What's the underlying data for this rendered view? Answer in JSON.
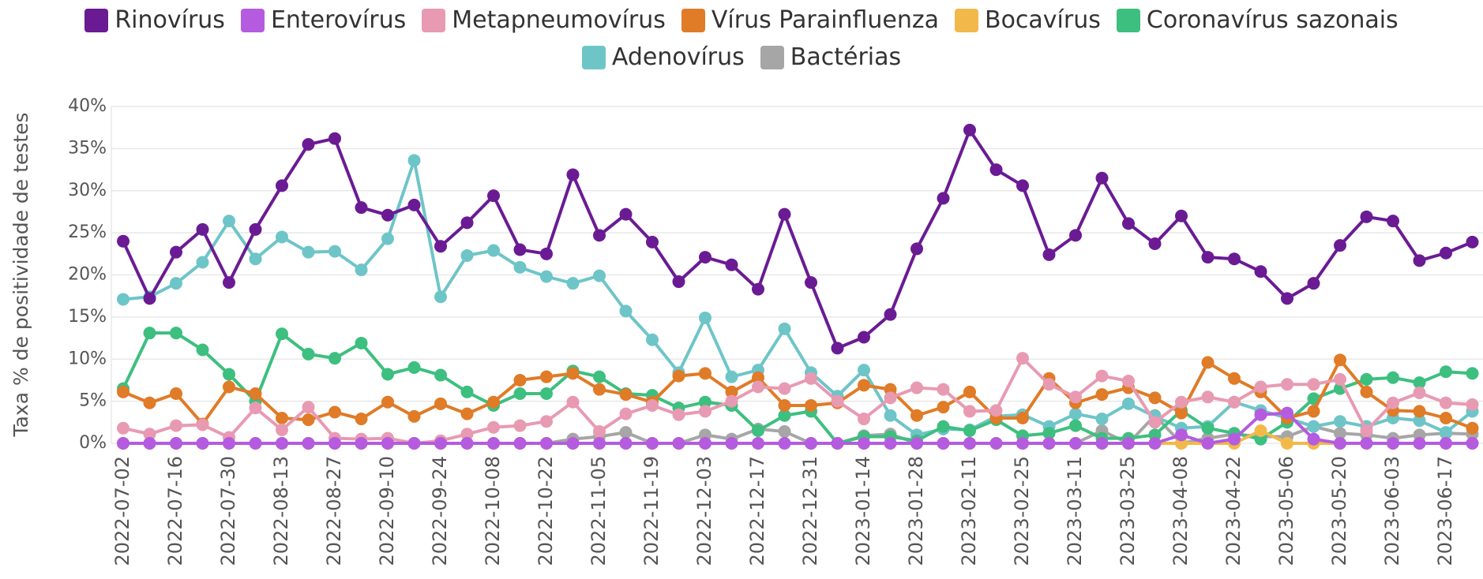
{
  "chart_data": {
    "type": "line",
    "y_label": "Taxa % de positividade de testes",
    "categories": [
      "2022-07-02",
      null,
      "2022-07-16",
      null,
      "2022-07-30",
      null,
      "2022-08-13",
      null,
      "2022-08-27",
      null,
      "2022-09-10",
      null,
      "2022-09-24",
      null,
      "2022-10-08",
      null,
      "2022-10-22",
      null,
      "2022-11-05",
      null,
      "2022-11-19",
      null,
      "2022-12-03",
      null,
      "2022-12-17",
      null,
      "2022-12-31",
      null,
      "2023-01-14",
      null,
      "2023-01-28",
      null,
      "2023-02-11",
      null,
      "2023-02-25",
      null,
      "2023-03-11",
      null,
      "2023-03-25",
      null,
      "2023-04-08",
      null,
      "2023-04-22",
      null,
      "2023-05-06",
      null,
      "2023-05-20",
      null,
      "2023-06-03",
      null,
      "2023-06-17",
      null
    ],
    "ylim": [
      0,
      40
    ],
    "yticks": [
      {
        "value": 0,
        "label": "0%"
      },
      {
        "value": 5,
        "label": "5%"
      },
      {
        "value": 10,
        "label": "10%"
      },
      {
        "value": 15,
        "label": "15%"
      },
      {
        "value": 20,
        "label": "20%"
      },
      {
        "value": 25,
        "label": "25%"
      },
      {
        "value": 30,
        "label": "30%"
      },
      {
        "value": 35,
        "label": "35%"
      },
      {
        "value": 40,
        "label": "40%"
      }
    ],
    "grid": true,
    "series": [
      {
        "name": "Rinovírus",
        "color": "#6a1b94",
        "values": [
          24.0,
          17.2,
          22.7,
          25.4,
          19.1,
          25.4,
          30.6,
          35.5,
          36.2,
          28.0,
          27.1,
          28.3,
          23.4,
          26.2,
          29.4,
          23.0,
          22.5,
          31.9,
          24.7,
          27.2,
          23.9,
          19.2,
          22.1,
          21.2,
          18.3,
          27.2,
          19.1,
          11.3,
          12.6,
          15.3,
          23.1,
          29.1,
          37.2,
          32.5,
          30.6,
          22.4,
          24.7,
          31.5,
          26.1,
          23.7,
          27.0,
          22.1,
          21.9,
          20.4,
          17.2,
          19.0,
          23.5,
          26.9,
          26.4,
          21.7,
          22.6,
          23.9
        ]
      },
      {
        "name": "Enterovírus",
        "color": "#b45be0",
        "values": [
          0,
          0,
          0,
          0,
          0,
          0,
          0,
          0,
          0,
          0,
          0,
          0,
          0,
          0,
          0,
          0,
          0,
          0,
          0,
          0,
          0,
          0,
          0,
          0,
          0,
          0,
          0,
          0,
          0,
          0,
          0,
          0,
          0,
          0,
          0,
          0,
          0,
          0,
          0,
          0,
          1.0,
          0,
          0.5,
          3.4,
          3.6,
          0.5,
          0,
          0,
          0,
          0,
          0,
          0
        ]
      },
      {
        "name": "Metapneumovírus",
        "color": "#e89ab2",
        "values": [
          1.8,
          1.1,
          2.1,
          2.2,
          0.7,
          4.2,
          1.6,
          4.3,
          0.6,
          0.5,
          0.6,
          0,
          0.3,
          1.1,
          1.9,
          2.1,
          2.6,
          4.9,
          1.4,
          3.5,
          4.5,
          3.4,
          3.8,
          5.0,
          6.7,
          6.5,
          7.7,
          5.0,
          2.9,
          5.4,
          6.6,
          6.4,
          3.8,
          3.9,
          10.1,
          7.0,
          5.5,
          8.0,
          7.4,
          2.5,
          4.9,
          5.5,
          4.9,
          6.7,
          7.0,
          7.0,
          7.6,
          1.5,
          4.8,
          6.0,
          4.8,
          4.6
        ]
      },
      {
        "name": "Vírus Parainfluenza",
        "color": "#e07b27",
        "values": [
          6.1,
          4.8,
          5.9,
          2.3,
          6.7,
          5.9,
          3.0,
          2.8,
          3.7,
          2.9,
          4.9,
          3.2,
          4.7,
          3.5,
          4.9,
          7.5,
          7.9,
          8.3,
          6.4,
          5.8,
          4.9,
          8.0,
          8.3,
          6.1,
          7.8,
          4.5,
          4.5,
          4.8,
          6.9,
          6.4,
          3.3,
          4.3,
          6.1,
          3.0,
          3.0,
          7.7,
          4.8,
          5.8,
          6.6,
          5.4,
          3.6,
          9.6,
          7.7,
          6.1,
          3.0,
          3.8,
          9.9,
          6.1,
          3.9,
          3.8,
          3.0,
          1.8
        ]
      },
      {
        "name": "Bocavírus",
        "color": "#f2b94a",
        "values": [
          0,
          0,
          0,
          0,
          0,
          0,
          0,
          0,
          0,
          0,
          0,
          0,
          0,
          0,
          0,
          0,
          0,
          0,
          0,
          0,
          0,
          0,
          0,
          0,
          0,
          0,
          0,
          0,
          0,
          0,
          0,
          0,
          0,
          0,
          0,
          0,
          0,
          0,
          0,
          0,
          0,
          0,
          0,
          1.5,
          0,
          0,
          0,
          0,
          0,
          0,
          0,
          0
        ]
      },
      {
        "name": "Coronavírus sazonais",
        "color": "#3dbf7f",
        "values": [
          6.5,
          13.1,
          13.1,
          11.1,
          8.2,
          5.0,
          13.0,
          10.6,
          10.1,
          11.9,
          8.2,
          9.0,
          8.1,
          6.1,
          4.5,
          5.9,
          5.9,
          8.6,
          7.9,
          5.9,
          5.7,
          4.2,
          4.9,
          4.5,
          1.5,
          3.3,
          3.8,
          0,
          0.8,
          0.8,
          0.3,
          2.0,
          1.5,
          2.8,
          0.9,
          1.2,
          2.1,
          0.6,
          0.6,
          1.0,
          3.9,
          1.8,
          1.2,
          0.5,
          2.5,
          5.3,
          6.5,
          7.6,
          7.8,
          7.2,
          8.5,
          8.3
        ]
      },
      {
        "name": "Adenovírus",
        "color": "#6ec5c8",
        "values": [
          17.1,
          17.4,
          19.0,
          21.5,
          26.4,
          21.9,
          24.5,
          22.7,
          22.8,
          20.6,
          24.3,
          33.6,
          17.4,
          22.3,
          22.9,
          20.9,
          19.8,
          19.0,
          19.9,
          15.7,
          12.3,
          8.4,
          14.9,
          7.9,
          8.7,
          13.6,
          8.4,
          5.6,
          8.7,
          3.3,
          1.0,
          1.7,
          1.6,
          3.2,
          3.4,
          2.0,
          3.5,
          2.9,
          4.7,
          3.2,
          1.8,
          2.0,
          4.9,
          3.9,
          3.0,
          2.0,
          2.6,
          2.0,
          3.0,
          2.7,
          1.3,
          3.8
        ]
      },
      {
        "name": "Bactérias",
        "color": "#a6a6a6",
        "values": [
          0,
          0,
          0,
          0,
          0,
          0,
          0,
          0,
          0,
          0,
          0,
          0,
          0,
          0,
          0,
          0,
          0,
          0.5,
          0.8,
          1.3,
          0,
          0,
          1.0,
          0.5,
          1.7,
          1.4,
          0,
          0,
          0.9,
          1.1,
          0,
          0,
          0,
          0,
          0,
          0,
          0,
          1.5,
          0,
          3.3,
          0,
          0.6,
          1.1,
          0.8,
          0.8,
          2.0,
          1.2,
          1.0,
          0.6,
          1.0,
          1.2,
          1.1
        ]
      }
    ]
  }
}
